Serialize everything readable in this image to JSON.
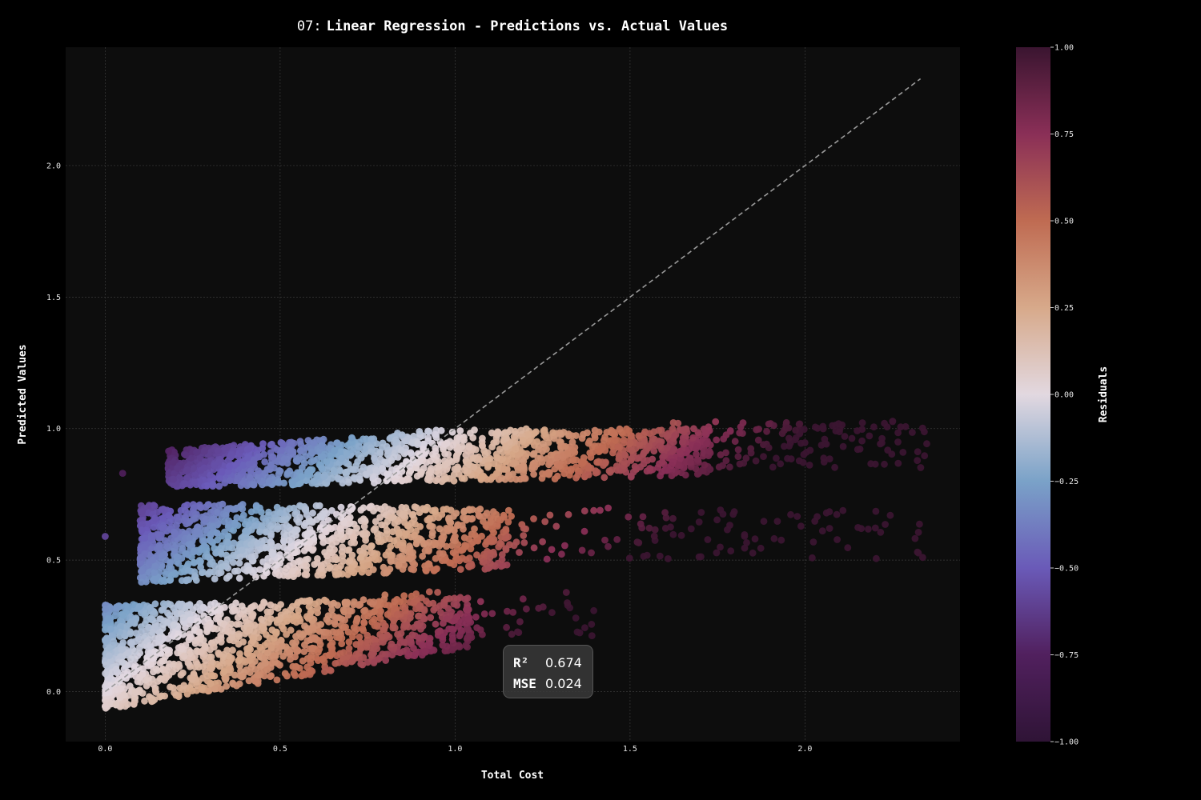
{
  "chart_data": {
    "type": "scatter",
    "title_prefix": "07:",
    "title": "Linear Regression - Predictions vs. Actual Values",
    "xlabel": "Total Cost",
    "ylabel": "Predicted Values",
    "xlim": [
      -0.113,
      2.443
    ],
    "ylim": [
      -0.19,
      2.45
    ],
    "xticks": [
      "0.0",
      "0.5",
      "1.0",
      "1.5",
      "2.0"
    ],
    "yticks": [
      "0.0",
      "0.5",
      "1.0",
      "1.5",
      "2.0"
    ],
    "grid": true,
    "reference_line": {
      "from": [
        0.0,
        0.0
      ],
      "to": [
        2.33,
        2.33
      ],
      "style": "dashed"
    },
    "colorbar": {
      "label": "Residuals",
      "range": [
        -1.0,
        1.0
      ],
      "ticks": [
        "1.00",
        "0.75",
        "0.50",
        "0.25",
        "0.00",
        "−0.25",
        "−0.50",
        "−0.75",
        "−1.00"
      ]
    },
    "clusters": [
      {
        "band": "low",
        "x_range": [
          0.0,
          1.4
        ],
        "y_base": [
          -0.07,
          0.33
        ]
      },
      {
        "band": "mid",
        "x_range": [
          0.0,
          2.35
        ],
        "y_base": [
          0.41,
          0.72
        ]
      },
      {
        "band": "high",
        "x_range": [
          0.04,
          2.35
        ],
        "y_base": [
          0.77,
          1.05
        ]
      }
    ],
    "stats": [
      {
        "label": "R²",
        "value": "0.674"
      },
      {
        "label": "MSE",
        "value": "0.024"
      }
    ]
  },
  "colors": {
    "background": "#000000",
    "plot_background": "#0d0d0d",
    "grid": "#3a3a3a",
    "reference_line": "#9a9a9a",
    "colormap": [
      "#2f1436",
      "#51205e",
      "#6a5ab8",
      "#7aa2c8",
      "#e2d8e0",
      "#d7a98a",
      "#bf6b52",
      "#8a2f57",
      "#3a1530"
    ]
  }
}
